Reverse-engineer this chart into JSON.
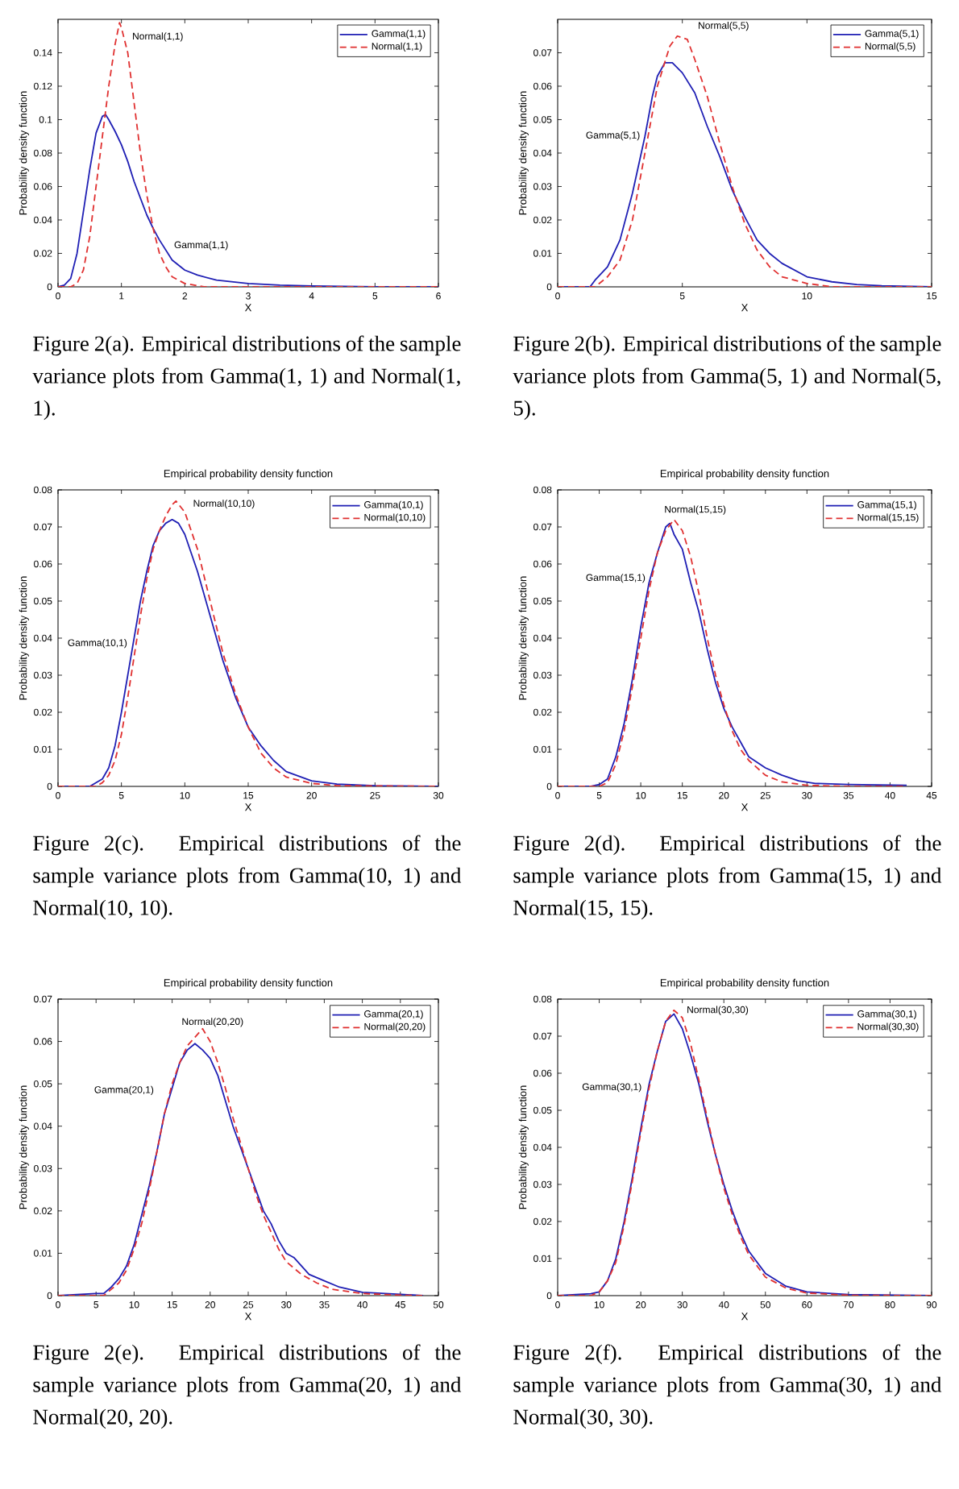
{
  "chart_data": [
    {
      "type": "line",
      "xlabel": "X",
      "ylabel": "Probability density function",
      "xlim": [
        0,
        6
      ],
      "ylim": [
        0,
        0.16
      ],
      "xticks": [
        0,
        1,
        2,
        3,
        4,
        5,
        6
      ],
      "yticks": [
        0,
        0.02,
        0.04,
        0.06,
        0.08,
        0.1,
        0.12,
        0.14
      ],
      "legend": "top right",
      "series": [
        {
          "name": "Gamma(1,1)",
          "color": "#1f1fb4",
          "line_style": "solid",
          "x": [
            0,
            0.1,
            0.2,
            0.3,
            0.4,
            0.5,
            0.6,
            0.7,
            0.75,
            0.8,
            0.9,
            1.0,
            1.1,
            1.2,
            1.3,
            1.4,
            1.5,
            1.6,
            1.8,
            2.0,
            2.2,
            2.5,
            3.0,
            3.5,
            4,
            5,
            6
          ],
          "values": [
            0,
            0.001,
            0.005,
            0.02,
            0.045,
            0.07,
            0.092,
            0.102,
            0.103,
            0.1,
            0.093,
            0.085,
            0.075,
            0.063,
            0.053,
            0.043,
            0.035,
            0.028,
            0.016,
            0.01,
            0.007,
            0.004,
            0.002,
            0.001,
            0.0005,
            0,
            0
          ]
        },
        {
          "name": "Normal(1,1)",
          "color": "#e03030",
          "line_style": "dashed",
          "x": [
            0,
            0.2,
            0.3,
            0.4,
            0.5,
            0.6,
            0.7,
            0.8,
            0.9,
            0.97,
            1.0,
            1.1,
            1.2,
            1.3,
            1.4,
            1.5,
            1.6,
            1.7,
            1.8,
            2.0,
            2.3,
            6
          ],
          "values": [
            0,
            0,
            0.002,
            0.01,
            0.03,
            0.06,
            0.09,
            0.12,
            0.145,
            0.158,
            0.155,
            0.14,
            0.11,
            0.08,
            0.055,
            0.035,
            0.02,
            0.012,
            0.006,
            0.002,
            0,
            0
          ]
        }
      ],
      "annotations": [
        "Normal(1,1)",
        "Gamma(1,1)",
        "Figure 2(a). Empirical distributions of the sample variance plots from Gamma(1, 1) and Normal(1, 1)."
      ]
    },
    {
      "type": "line",
      "xlabel": "X",
      "ylabel": "Probability density function",
      "xlim": [
        0,
        15
      ],
      "ylim": [
        0,
        0.08
      ],
      "xticks": [
        0,
        5,
        10,
        15
      ],
      "yticks": [
        0,
        0.01,
        0.02,
        0.03,
        0.04,
        0.05,
        0.06,
        0.07
      ],
      "legend": "top right",
      "series": [
        {
          "name": "Gamma(5,1)",
          "color": "#1f1fb4",
          "line_style": "solid",
          "x": [
            0,
            1.3,
            1.5,
            2,
            2.5,
            3,
            3.5,
            3.8,
            4,
            4.3,
            4.6,
            5,
            5.5,
            6,
            6.5,
            7,
            7.5,
            8,
            8.5,
            9,
            10,
            11,
            12,
            13,
            15
          ],
          "values": [
            0,
            0,
            0.002,
            0.006,
            0.014,
            0.028,
            0.045,
            0.057,
            0.063,
            0.067,
            0.067,
            0.064,
            0.058,
            0.048,
            0.039,
            0.029,
            0.021,
            0.014,
            0.01,
            0.007,
            0.003,
            0.0015,
            0.0007,
            0.0003,
            0
          ]
        },
        {
          "name": "Normal(5,5)",
          "color": "#e03030",
          "line_style": "dashed",
          "x": [
            0,
            1.5,
            2,
            2.5,
            3,
            3.5,
            4,
            4.5,
            4.8,
            5.2,
            5.5,
            6,
            6.5,
            7,
            7.5,
            8,
            8.5,
            9,
            10,
            11,
            15
          ],
          "values": [
            0,
            0,
            0.003,
            0.008,
            0.02,
            0.04,
            0.06,
            0.072,
            0.075,
            0.074,
            0.068,
            0.057,
            0.043,
            0.03,
            0.019,
            0.011,
            0.006,
            0.003,
            0.001,
            0,
            0
          ]
        }
      ],
      "annotations": [
        "Normal(5,5)",
        "Gamma(5,1)",
        "Figure 2(b). Empirical distributions of the sample variance plots from Gamma(5, 1) and Normal(5, 5)."
      ]
    },
    {
      "type": "line",
      "title": "Empirical probability density function",
      "xlabel": "X",
      "ylabel": "Probability density function",
      "xlim": [
        0,
        30
      ],
      "ylim": [
        0,
        0.08
      ],
      "xticks": [
        0,
        5,
        10,
        15,
        20,
        25,
        30
      ],
      "yticks": [
        0,
        0.01,
        0.02,
        0.03,
        0.04,
        0.05,
        0.06,
        0.07,
        0.08
      ],
      "legend": "top right",
      "series": [
        {
          "name": "Gamma(10,1)",
          "color": "#1f1fb4",
          "line_style": "solid",
          "x": [
            0,
            2.5,
            3.5,
            4,
            4.5,
            5,
            5.5,
            6,
            6.5,
            7,
            7.5,
            8,
            8.5,
            9,
            9.5,
            10,
            11,
            12,
            13,
            14,
            15,
            16,
            17,
            18,
            20,
            22,
            25,
            30
          ],
          "values": [
            0,
            0,
            0.002,
            0.005,
            0.011,
            0.02,
            0.03,
            0.04,
            0.05,
            0.058,
            0.065,
            0.069,
            0.071,
            0.072,
            0.071,
            0.068,
            0.058,
            0.046,
            0.034,
            0.024,
            0.016,
            0.011,
            0.007,
            0.004,
            0.0015,
            0.0006,
            0.0002,
            0
          ]
        },
        {
          "name": "Normal(10,10)",
          "color": "#e03030",
          "line_style": "dashed",
          "x": [
            0,
            3,
            3.5,
            4,
            4.5,
            5,
            5.5,
            6,
            6.5,
            7,
            7.5,
            8,
            8.5,
            9,
            9.3,
            10,
            11,
            12,
            13,
            14,
            15,
            16,
            17,
            18,
            20,
            22,
            30
          ],
          "values": [
            0,
            0,
            0.001,
            0.003,
            0.007,
            0.014,
            0.024,
            0.035,
            0.046,
            0.056,
            0.064,
            0.069,
            0.073,
            0.076,
            0.077,
            0.074,
            0.064,
            0.05,
            0.036,
            0.025,
            0.016,
            0.009,
            0.005,
            0.0025,
            0.0008,
            0.0002,
            0
          ]
        }
      ],
      "annotations": [
        "Normal(10,10)",
        "Gamma(10,1)",
        "Figure 2(c). Empirical distributions of the sample variance plots from Gamma(10, 1) and Normal(10, 10)."
      ]
    },
    {
      "type": "line",
      "title": "Empirical probability density function",
      "xlabel": "X",
      "ylabel": "Probability density function",
      "xlim": [
        0,
        45
      ],
      "ylim": [
        0,
        0.08
      ],
      "xticks": [
        0,
        5,
        10,
        15,
        20,
        25,
        30,
        35,
        40,
        45
      ],
      "yticks": [
        0,
        0.01,
        0.02,
        0.03,
        0.04,
        0.05,
        0.06,
        0.07,
        0.08
      ],
      "legend": "top right",
      "series": [
        {
          "name": "Gamma(15,1)",
          "color": "#1f1fb4",
          "line_style": "solid",
          "x": [
            0,
            4,
            5,
            6,
            7,
            8,
            9,
            10,
            11,
            12,
            13,
            13.5,
            14,
            15,
            16,
            17,
            18,
            19,
            20,
            21,
            22,
            23,
            25,
            27,
            29,
            31,
            35,
            42
          ],
          "values": [
            0,
            0,
            0.0005,
            0.002,
            0.008,
            0.017,
            0.029,
            0.043,
            0.055,
            0.063,
            0.07,
            0.071,
            0.068,
            0.064,
            0.055,
            0.047,
            0.037,
            0.028,
            0.021,
            0.016,
            0.012,
            0.008,
            0.005,
            0.003,
            0.0015,
            0.0008,
            0.0005,
            0.0003
          ]
        },
        {
          "name": "Normal(15,15)",
          "color": "#e03030",
          "line_style": "dashed",
          "x": [
            0,
            5,
            6,
            7,
            8,
            9,
            10,
            11,
            12,
            13,
            14,
            15,
            16,
            17,
            18,
            19,
            20,
            21,
            22,
            23,
            25,
            27,
            30,
            35,
            42
          ],
          "values": [
            0,
            0,
            0.001,
            0.006,
            0.015,
            0.027,
            0.04,
            0.053,
            0.063,
            0.069,
            0.072,
            0.069,
            0.062,
            0.052,
            0.04,
            0.03,
            0.022,
            0.015,
            0.01,
            0.007,
            0.003,
            0.0012,
            0.0003,
            0,
            0
          ]
        }
      ],
      "annotations": [
        "Normal(15,15)",
        "Gamma(15,1)",
        "Figure 2(d). Empirical distributions of the sample variance plots from Gamma(15, 1) and Normal(15, 15)."
      ]
    },
    {
      "type": "line",
      "title": "Empirical probability density function",
      "xlabel": "X",
      "ylabel": "Probability density function",
      "xlim": [
        0,
        50
      ],
      "ylim": [
        0,
        0.07
      ],
      "xticks": [
        0,
        5,
        10,
        15,
        20,
        25,
        30,
        35,
        40,
        45,
        50
      ],
      "yticks": [
        0,
        0.01,
        0.02,
        0.03,
        0.04,
        0.05,
        0.06,
        0.07
      ],
      "legend": "top right",
      "series": [
        {
          "name": "Gamma(20,1)",
          "color": "#1f1fb4",
          "line_style": "solid",
          "x": [
            0,
            5,
            6,
            7,
            8,
            9,
            10,
            11,
            12,
            13,
            14,
            15,
            16,
            17,
            18,
            19,
            20,
            21,
            22,
            23,
            24,
            25,
            26,
            27,
            28,
            29,
            30,
            31,
            32,
            33,
            35,
            37,
            40,
            45,
            48
          ],
          "values": [
            0,
            0.0005,
            0.0005,
            0.002,
            0.004,
            0.007,
            0.012,
            0.019,
            0.026,
            0.034,
            0.043,
            0.049,
            0.055,
            0.058,
            0.0595,
            0.058,
            0.056,
            0.052,
            0.046,
            0.04,
            0.035,
            0.03,
            0.025,
            0.02,
            0.017,
            0.013,
            0.01,
            0.009,
            0.007,
            0.005,
            0.0035,
            0.002,
            0.0008,
            0.0003,
            0
          ]
        },
        {
          "name": "Normal(20,20)",
          "color": "#e03030",
          "line_style": "dashed",
          "x": [
            0,
            6,
            7,
            8,
            9,
            10,
            11,
            12,
            13,
            14,
            15,
            16,
            17,
            18,
            19,
            20,
            21,
            22,
            23,
            24,
            25,
            26,
            27,
            28,
            29,
            30,
            32,
            34,
            36,
            40,
            45,
            48
          ],
          "values": [
            0,
            0,
            0.0015,
            0.003,
            0.006,
            0.011,
            0.017,
            0.025,
            0.034,
            0.043,
            0.05,
            0.055,
            0.059,
            0.061,
            0.063,
            0.06,
            0.055,
            0.049,
            0.042,
            0.036,
            0.03,
            0.024,
            0.019,
            0.015,
            0.011,
            0.008,
            0.005,
            0.003,
            0.0015,
            0.0005,
            0.0001,
            0
          ]
        }
      ],
      "annotations": [
        "Normal(20,20)",
        "Gamma(20,1)",
        "Figure 2(e). Empirical distributions of the sample variance plots from Gamma(20, 1) and Normal(20, 20)."
      ]
    },
    {
      "type": "line",
      "title": "Empirical probability density function",
      "xlabel": "X",
      "ylabel": "Probability density function",
      "xlim": [
        0,
        90
      ],
      "ylim": [
        0,
        0.08
      ],
      "xticks": [
        0,
        10,
        20,
        30,
        40,
        50,
        60,
        70,
        80,
        90
      ],
      "yticks": [
        0,
        0.01,
        0.02,
        0.03,
        0.04,
        0.05,
        0.06,
        0.07,
        0.08
      ],
      "legend": "top right",
      "series": [
        {
          "name": "Gamma(30,1)",
          "color": "#1f1fb4",
          "line_style": "solid",
          "x": [
            0,
            8,
            10,
            12,
            14,
            16,
            18,
            20,
            22,
            24,
            26,
            28,
            30,
            32,
            34,
            36,
            38,
            40,
            42,
            44,
            46,
            48,
            50,
            55,
            60,
            70,
            90
          ],
          "values": [
            0,
            0.0005,
            0.001,
            0.004,
            0.01,
            0.02,
            0.032,
            0.045,
            0.057,
            0.066,
            0.074,
            0.076,
            0.072,
            0.065,
            0.057,
            0.047,
            0.038,
            0.03,
            0.023,
            0.017,
            0.012,
            0.009,
            0.006,
            0.0025,
            0.001,
            0.0003,
            0
          ]
        },
        {
          "name": "Normal(30,30)",
          "color": "#e03030",
          "line_style": "dashed",
          "x": [
            0,
            8,
            10,
            12,
            14,
            16,
            18,
            20,
            22,
            24,
            26,
            28,
            30,
            32,
            34,
            36,
            38,
            40,
            42,
            44,
            46,
            48,
            50,
            55,
            60,
            70,
            90
          ],
          "values": [
            0,
            0,
            0.001,
            0.004,
            0.009,
            0.019,
            0.031,
            0.044,
            0.056,
            0.066,
            0.074,
            0.077,
            0.075,
            0.068,
            0.058,
            0.048,
            0.038,
            0.029,
            0.022,
            0.016,
            0.011,
            0.008,
            0.005,
            0.002,
            0.0007,
            0.0001,
            0
          ]
        }
      ],
      "annotations": [
        "Normal(30,30)",
        "Gamma(30,1)",
        "Figure 2(f). Empirical distributions of the sample variance plots from Gamma(30, 1) and Normal(30, 30)."
      ]
    }
  ]
}
